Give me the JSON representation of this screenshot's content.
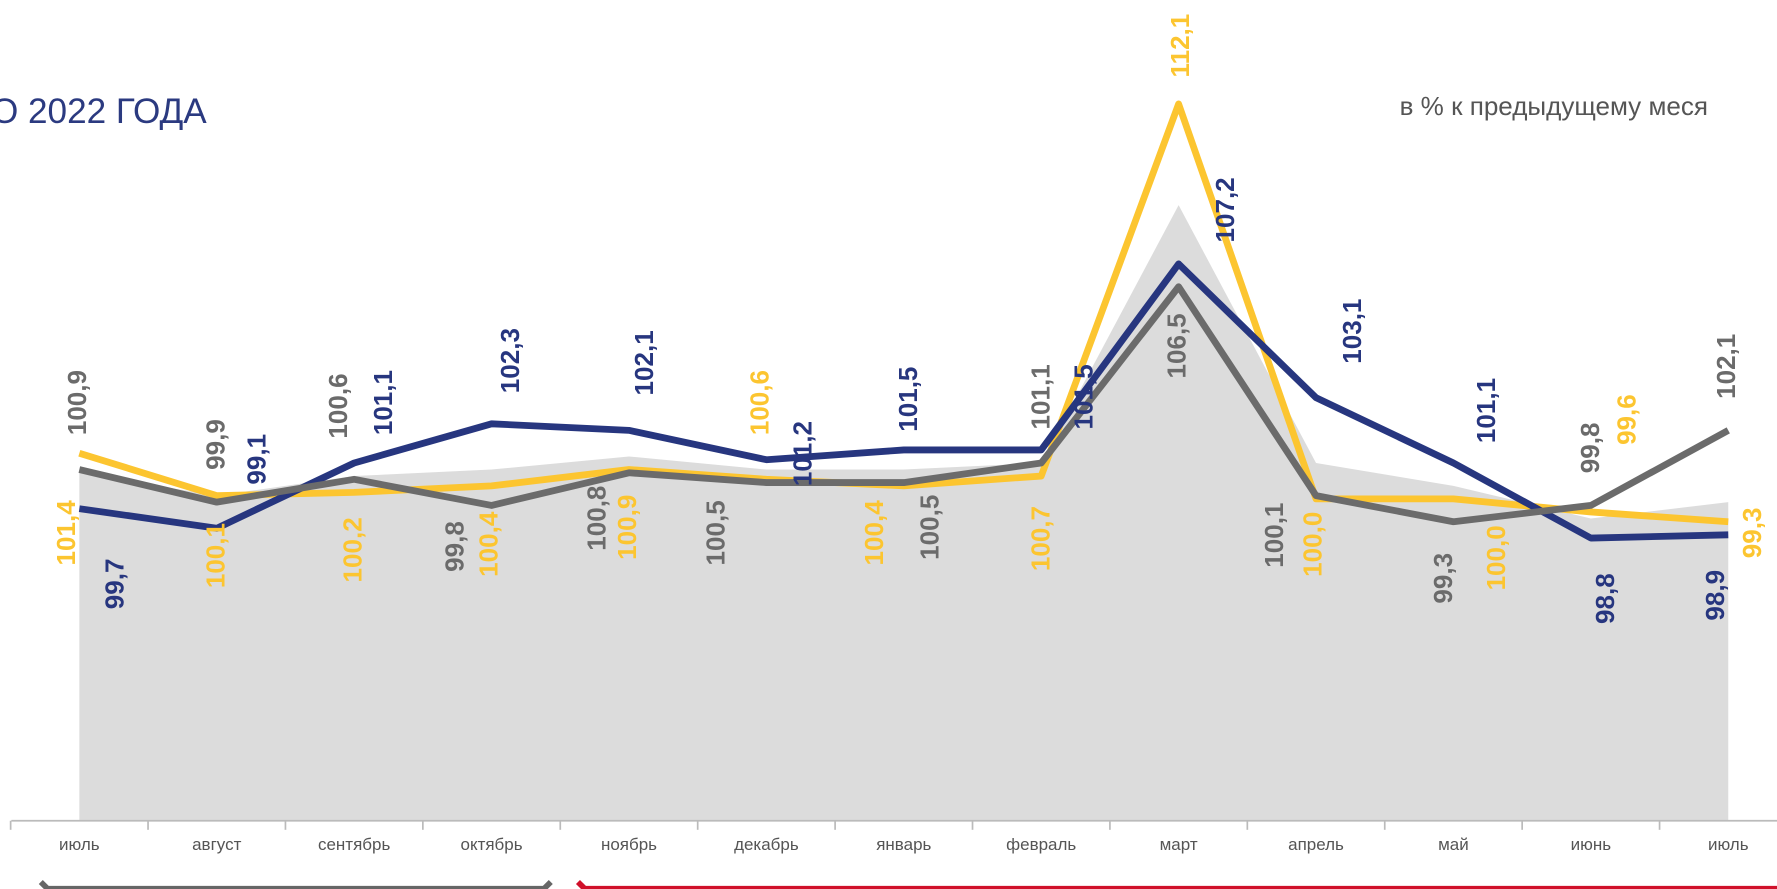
{
  "chart_data": {
    "type": "line",
    "title": "О 2022 ГОДА",
    "subtitle": "в % к предыдущему меся",
    "categories": [
      "июль",
      "август",
      "сентябрь",
      "октябрь",
      "ноябрь",
      "декабрь",
      "январь",
      "февраль",
      "март",
      "апрель",
      "май",
      "июнь",
      "июль"
    ],
    "ylim": [
      90,
      115
    ],
    "area": {
      "color": "#dcdcdc",
      "values": [
        100.8,
        100.1,
        100.7,
        100.9,
        101.3,
        100.9,
        100.9,
        101.1,
        109.0,
        101.1,
        100.4,
        99.4,
        99.9
      ]
    },
    "series": [
      {
        "color": "#fcc530",
        "values": [
          101.4,
          100.1,
          100.2,
          100.4,
          100.9,
          100.6,
          100.4,
          100.7,
          112.1,
          100.0,
          100.0,
          99.6,
          99.3
        ],
        "value_labels": [
          "101,4",
          "100,1",
          "100,2",
          "100,4",
          "100,9",
          "100,6",
          "100,4",
          "100,7",
          "112,1",
          "100,0",
          "100,0",
          "99,6",
          "99,3"
        ]
      },
      {
        "color": "#27367f",
        "values": [
          99.7,
          99.1,
          101.1,
          102.3,
          102.1,
          101.2,
          101.5,
          101.5,
          107.2,
          103.1,
          101.1,
          98.8,
          98.9
        ],
        "value_labels": [
          "99,7",
          "99,1",
          "101,1",
          "102,3",
          "102,1",
          "101,2",
          "101,5",
          "101,5",
          "107,2",
          "103,1",
          "101,1",
          "98,8",
          "98,9"
        ]
      },
      {
        "color": "#6b6b6b",
        "values": [
          100.9,
          99.9,
          100.6,
          99.8,
          100.8,
          100.5,
          100.5,
          101.1,
          106.5,
          100.1,
          99.3,
          99.8,
          102.1
        ],
        "value_labels": [
          "100,9",
          "99,9",
          "100,6",
          "99,8",
          "100,8",
          "100,5",
          "100,5",
          "101,1",
          "106,5",
          "100,1",
          "99,3",
          "99,8",
          "102,1"
        ]
      }
    ]
  }
}
